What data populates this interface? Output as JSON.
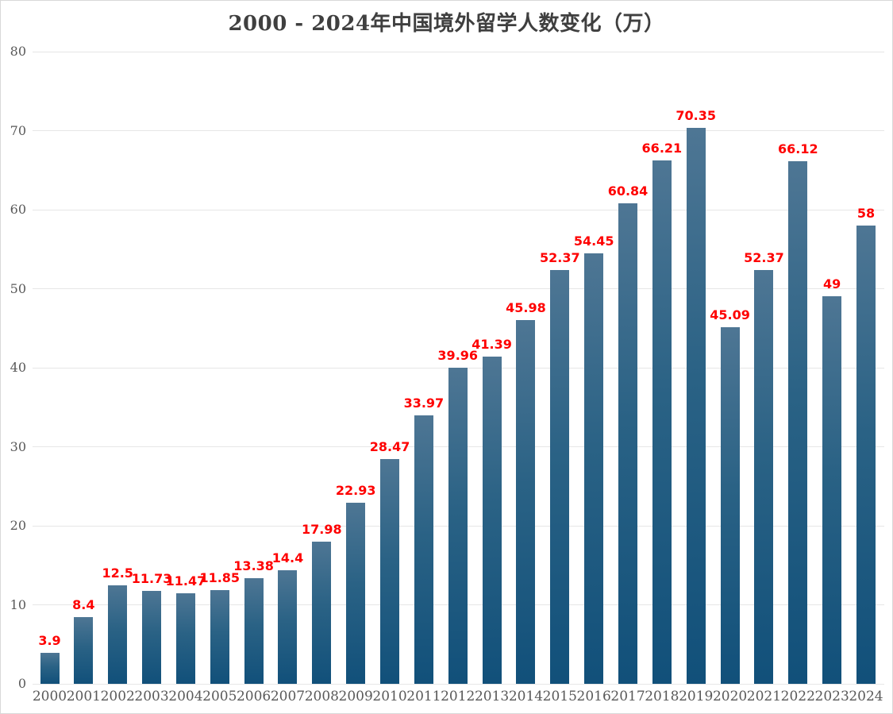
{
  "title": "2000 - 2024年中国境外留学人数变化（万）",
  "chart_data": {
    "type": "bar",
    "title": "2000 - 2024年中国境外留学人数变化（万）",
    "xlabel": "",
    "ylabel": "",
    "categories": [
      "2000",
      "2001",
      "2002",
      "2003",
      "2004",
      "2005",
      "2006",
      "2007",
      "2008",
      "2009",
      "2010",
      "2011",
      "2012",
      "2013",
      "2014",
      "2015",
      "2016",
      "2017",
      "2018",
      "2019",
      "2020",
      "2021",
      "2022",
      "2023",
      "2024"
    ],
    "values": [
      3.9,
      8.4,
      12.5,
      11.73,
      11.47,
      11.85,
      13.38,
      14.4,
      17.98,
      22.93,
      28.47,
      33.97,
      39.96,
      41.39,
      45.98,
      52.37,
      54.45,
      60.84,
      66.21,
      70.35,
      45.09,
      52.37,
      66.12,
      49,
      58
    ],
    "value_labels": [
      "3.9",
      "8.4",
      "12.5",
      "11.73",
      "11.47",
      "11.85",
      "13.38",
      "14.4",
      "17.98",
      "22.93",
      "28.47",
      "33.97",
      "39.96",
      "41.39",
      "45.98",
      "52.37",
      "54.45",
      "60.84",
      "66.21",
      "70.35",
      "45.09",
      "52.37",
      "66.12",
      "49",
      "58"
    ],
    "y_ticks": [
      0,
      10,
      20,
      30,
      40,
      50,
      60,
      70,
      80
    ],
    "ylim": [
      0,
      80
    ],
    "grid": true,
    "legend": "none",
    "colors": {
      "bar_gradient_top": "#4e7694",
      "bar_gradient_mid": "#2a6285",
      "bar_gradient_bottom": "#11507a",
      "data_label": "#fe0000",
      "axis_text": "#595959",
      "title_text": "#3f3f3f",
      "gridline": "#e6e6e6",
      "border": "#d9d9d9",
      "background": "#ffffff"
    }
  }
}
